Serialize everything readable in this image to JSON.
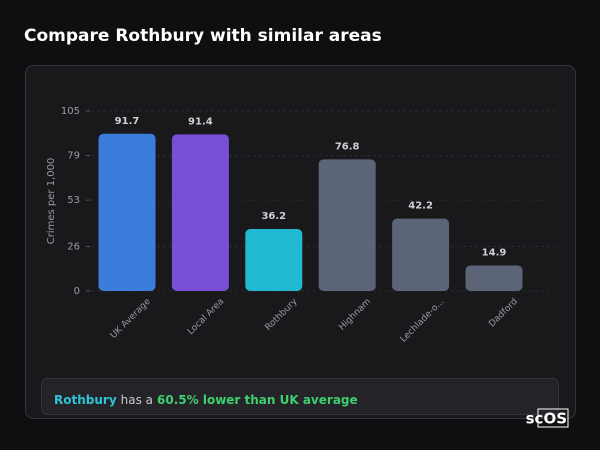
{
  "chart_data": {
    "type": "bar",
    "title": "Compare Rothbury with similar areas",
    "ylabel": "Crimes per 1,000",
    "categories": [
      "UK Average",
      "Local Area",
      "Rothbury",
      "Highnam",
      "Lechlade-o...",
      "Dadford"
    ],
    "values": [
      91.7,
      91.4,
      36.2,
      76.8,
      42.2,
      14.9
    ],
    "colors": [
      "#3b7ddb",
      "#7a4fd8",
      "#20b9d1",
      "#5b6577",
      "#5b6577",
      "#5b6577"
    ],
    "ylim": [
      0,
      105
    ],
    "yticks": [
      0,
      26,
      53,
      79,
      105
    ],
    "grid": true
  },
  "summary": {
    "area": "Rothbury",
    "text": "has a",
    "highlight": "60.5% lower than UK average"
  },
  "logo": "scOS"
}
